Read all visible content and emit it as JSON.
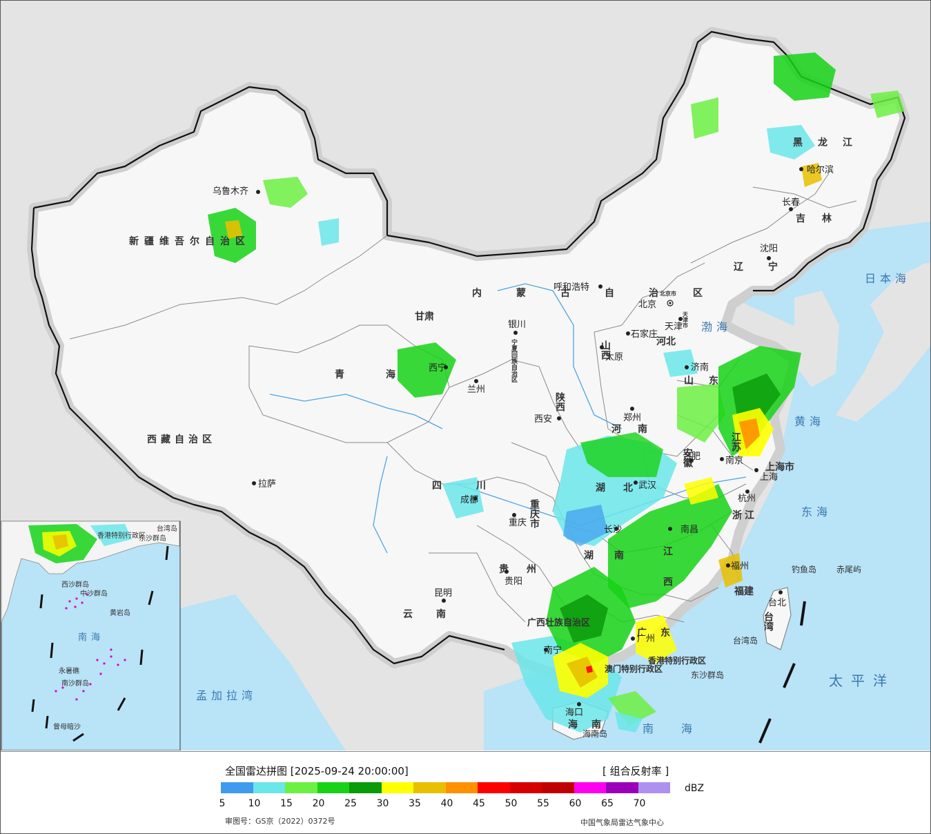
{
  "legend": {
    "title": "全国雷达拼图 [2025-09-24 20:00:00]",
    "product": "[ 组合反射率 ]",
    "unit": "dBZ",
    "colors": [
      "#3f9bf0",
      "#6be6ea",
      "#6cf043",
      "#18d218",
      "#0a9a0a",
      "#ffff00",
      "#e8c000",
      "#ff9000",
      "#ff0000",
      "#d60000",
      "#c00000",
      "#ff00f0",
      "#9a00b8",
      "#ae90f0"
    ],
    "ticks": [
      "5",
      "10",
      "15",
      "20",
      "25",
      "30",
      "35",
      "40",
      "45",
      "50",
      "55",
      "60",
      "65",
      "70"
    ],
    "review_no": "审图号：GS京（2022）0372号",
    "credit": "中国气象局雷达气象中心"
  },
  "colors": {
    "land": "#f7f7f7",
    "outside": "#e4e4e4",
    "water": "#b9e3f7",
    "border": "#111111",
    "province_border": "#888888"
  },
  "provinces": [
    "新疆维吾尔自治区",
    "西藏自治区",
    "青海",
    "甘肃",
    "内蒙古自治区",
    "黑龙江",
    "吉林",
    "辽宁",
    "河北",
    "山西",
    "山东",
    "河南",
    "陕西",
    "宁夏回族自治区",
    "四川",
    "重庆市",
    "湖北",
    "安徽",
    "江苏",
    "上海市",
    "浙江",
    "江西",
    "湖南",
    "贵州",
    "云南",
    "广西壮族自治区",
    "广东",
    "福建",
    "台湾",
    "海南",
    "香港特别行政区",
    "澳门特别行政区",
    "北京市",
    "天津市"
  ],
  "cities": [
    "乌鲁木齐",
    "拉萨",
    "西宁",
    "兰州",
    "银川",
    "呼和浩特",
    "北京",
    "天津",
    "石家庄",
    "太原",
    "济南",
    "郑州",
    "西安",
    "成都",
    "重庆",
    "武汉",
    "合肥",
    "南京",
    "上海",
    "杭州",
    "长沙",
    "南昌",
    "福州",
    "台北",
    "贵阳",
    "昆明",
    "南宁",
    "广州",
    "海口",
    "哈尔滨",
    "长春",
    "沈阳"
  ],
  "seas": [
    "日本海",
    "渤海",
    "黄海",
    "东海",
    "太平洋",
    "南海",
    "孟加拉湾"
  ],
  "islands": [
    "钓鱼岛",
    "赤尾屿",
    "台湾岛",
    "东沙群岛",
    "海南岛"
  ],
  "inset": {
    "labels": [
      "台湾岛",
      "香港特别行政区",
      "东沙群岛",
      "西沙群岛",
      "中沙群岛",
      "黄岩岛",
      "南沙群岛",
      "曾母暗沙",
      "永暑礁"
    ],
    "sea": "南海"
  }
}
